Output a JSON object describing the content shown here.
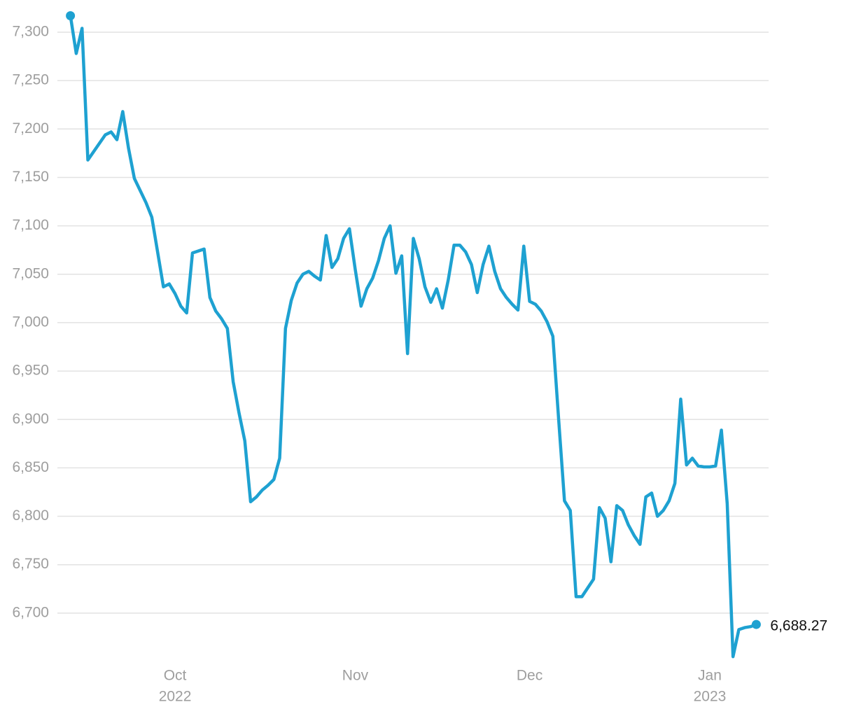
{
  "chart_data": {
    "type": "line",
    "x": [
      -18,
      -17,
      -16,
      -15,
      -12,
      -11,
      -10,
      -9,
      -8,
      -7,
      -5,
      -4,
      -3,
      -2,
      -1,
      0,
      1,
      2,
      3,
      5,
      6,
      7,
      8,
      9,
      10,
      11,
      12,
      13,
      14,
      15,
      16,
      17,
      18,
      19,
      20,
      21,
      22,
      23,
      24,
      25,
      26,
      27,
      28,
      29,
      30,
      31,
      32,
      33,
      34,
      35,
      36,
      37,
      38,
      39,
      40,
      41,
      42,
      43,
      44,
      45,
      46,
      47,
      48,
      49,
      50,
      51,
      52,
      53,
      54,
      55,
      56,
      57,
      58,
      59,
      60,
      61,
      62,
      63,
      64,
      65,
      66,
      67,
      68,
      69,
      70,
      71,
      72,
      73,
      74,
      75,
      76,
      77,
      78,
      79,
      80,
      81,
      82,
      83,
      84,
      85,
      86,
      87,
      88,
      89,
      90,
      91,
      92,
      93,
      94,
      95,
      96,
      97,
      98,
      99,
      100
    ],
    "series": [
      {
        "color": "#1ea1d1",
        "values": [
          7317,
          7278,
          7304,
          7168,
          7194,
          7197,
          7189,
          7218,
          7180,
          7149,
          7124,
          7109,
          7073,
          7037,
          7040,
          7030,
          7017,
          7010,
          7072,
          7076,
          7026,
          7012,
          7004,
          6994,
          6939,
          6907,
          6878,
          6815,
          6820,
          6827,
          6832,
          6838,
          6860,
          6994,
          7023,
          7041,
          7050,
          7053,
          7048,
          7044,
          7090,
          7057,
          7066,
          7087,
          7097,
          7055,
          7017,
          7035,
          7046,
          7064,
          7087,
          7100,
          7051,
          7069,
          6968,
          7087,
          7066,
          7037,
          7021,
          7035,
          7015,
          7044,
          7080,
          7080,
          7073,
          7060,
          7031,
          7060,
          7079,
          7053,
          7035,
          7026,
          7019,
          7013,
          7079,
          7022,
          7019,
          7012,
          7001,
          6986,
          6900,
          6816,
          6806,
          6717,
          6717,
          6726,
          6735,
          6809,
          6798,
          6753,
          6811,
          6806,
          6791,
          6780,
          6771,
          6820,
          6824,
          6800,
          6806,
          6816,
          6834,
          6921,
          6853,
          6860,
          6852,
          6851,
          6851,
          6852,
          6889,
          6813,
          6655,
          6683,
          6685,
          6686,
          6688.27
        ],
        "value_labels": [
          null,
          null,
          null,
          null,
          null,
          null,
          null,
          null,
          null,
          null,
          null,
          null,
          null,
          null,
          null,
          null,
          null,
          null,
          null,
          null,
          null,
          null,
          null,
          null,
          null,
          null,
          null,
          null,
          null,
          null,
          null,
          null,
          null,
          null,
          null,
          null,
          null,
          null,
          null,
          null,
          null,
          null,
          null,
          null,
          null,
          null,
          null,
          null,
          null,
          null,
          null,
          null,
          null,
          null,
          null,
          null,
          null,
          null,
          null,
          null,
          null,
          null,
          null,
          null,
          null,
          null,
          null,
          null,
          null,
          null,
          null,
          null,
          null,
          null,
          null,
          null,
          null,
          null,
          null,
          null,
          null,
          null,
          null,
          null,
          null,
          null,
          null,
          null,
          null,
          null,
          null,
          null,
          null,
          null,
          null,
          null,
          null,
          null,
          null,
          null,
          null,
          null,
          null,
          null,
          null,
          null,
          null,
          null,
          null,
          null,
          null,
          null,
          null,
          null,
          "6,688.27"
        ]
      }
    ],
    "xlim": [
      -20,
      102
    ],
    "xticks": [
      {
        "value": 0,
        "label": "Oct"
      },
      {
        "value": 31,
        "label": "Nov"
      },
      {
        "value": 61,
        "label": "Dec"
      },
      {
        "value": 92,
        "label": "Jan"
      }
    ],
    "x_sublabels": [
      "2022",
      null,
      null,
      "2023"
    ],
    "ylim": [
      6650,
      7330
    ],
    "yticks": [
      {
        "value": 6700,
        "label": "6,700"
      },
      {
        "value": 6750,
        "label": "6,750"
      },
      {
        "value": 6800,
        "label": "6,800"
      },
      {
        "value": 6850,
        "label": "6,850"
      },
      {
        "value": 6900,
        "label": "6,900"
      },
      {
        "value": 6950,
        "label": "6,950"
      },
      {
        "value": 7000,
        "label": "7,000"
      },
      {
        "value": 7050,
        "label": "7,050"
      },
      {
        "value": 7100,
        "label": "7,100"
      },
      {
        "value": 7150,
        "label": "7,150"
      },
      {
        "value": 7200,
        "label": "7,200"
      },
      {
        "value": 7250,
        "label": "7,250"
      },
      {
        "value": 7300,
        "label": "7,300"
      }
    ],
    "grid": true
  }
}
